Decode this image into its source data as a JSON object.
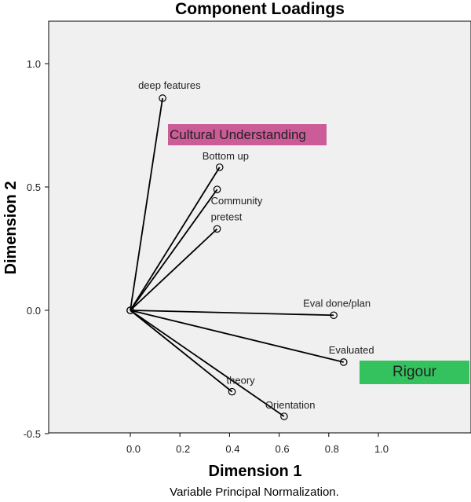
{
  "chart_data": {
    "type": "scatter",
    "title": "Component Loadings",
    "xlabel": "Dimension 1",
    "ylabel": "Dimension 2",
    "note": "Variable Principal Normalization.",
    "xlim": [
      -0.3,
      1.4
    ],
    "ylim": [
      -0.5,
      1.17
    ],
    "x_ticks": [
      "0.0",
      "0.2",
      "0.4",
      "0.6",
      "0.8",
      "1.0"
    ],
    "y_ticks": [
      "-0.5",
      "0.0",
      "0.5",
      "1.0"
    ],
    "origin": [
      0.0,
      0.0
    ],
    "points": [
      {
        "label": "deep features",
        "x": 0.13,
        "y": 0.86
      },
      {
        "label": "Bottom up",
        "x": 0.36,
        "y": 0.58
      },
      {
        "label": "Community",
        "x": 0.35,
        "y": 0.49
      },
      {
        "label": "pretest",
        "x": 0.35,
        "y": 0.33
      },
      {
        "label": "Eval done/plan",
        "x": 0.82,
        "y": -0.02
      },
      {
        "label": "Evaluated",
        "x": 0.86,
        "y": -0.21
      },
      {
        "label": "theory",
        "x": 0.41,
        "y": -0.33
      },
      {
        "label": "Orientation",
        "x": 0.62,
        "y": -0.43
      }
    ],
    "grid": false,
    "colors": {
      "plot_background": "#f0f0f0",
      "lines": "#000000"
    }
  },
  "annotations": [
    {
      "text": "Cultural Understanding",
      "color": "#cc5c97"
    },
    {
      "text": "Rigour",
      "color": "#33c25e"
    }
  ]
}
